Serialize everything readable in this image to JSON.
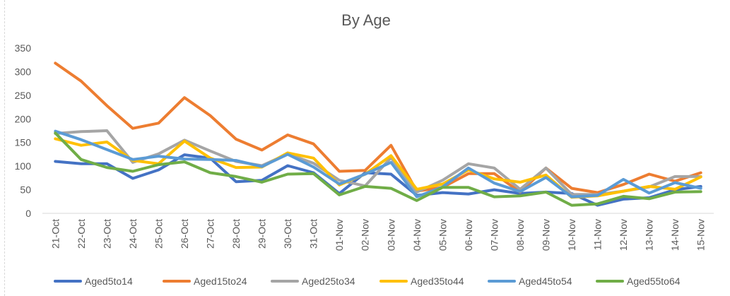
{
  "chart_data": {
    "type": "line",
    "title": "By Age",
    "ylim": [
      0,
      350
    ],
    "yticks": [
      0,
      50,
      100,
      150,
      200,
      250,
      300,
      350
    ],
    "grid": false,
    "legend_position": "bottom",
    "categories": [
      "21-Oct",
      "22-Oct",
      "23-Oct",
      "24-Oct",
      "25-Oct",
      "26-Oct",
      "27-Oct",
      "28-Oct",
      "29-Oct",
      "30-Oct",
      "31-Oct",
      "01-Nov",
      "02-Nov",
      "03-Nov",
      "04-Nov",
      "05-Nov",
      "06-Nov",
      "07-Nov",
      "08-Nov",
      "09-Nov",
      "10-Nov",
      "11-Nov",
      "12-Nov",
      "13-Nov",
      "14-Nov",
      "15-Nov"
    ],
    "series": [
      {
        "name": "Aged5to14",
        "color": "#4472C4",
        "values": [
          110,
          105,
          105,
          74,
          92,
          124,
          117,
          67,
          70,
          101,
          86,
          42,
          86,
          83,
          38,
          44,
          41,
          50,
          42,
          45,
          42,
          17,
          30,
          33,
          50,
          57
        ]
      },
      {
        "name": "Aged15to24",
        "color": "#ED7D31",
        "values": [
          318,
          280,
          228,
          180,
          191,
          245,
          207,
          157,
          134,
          166,
          147,
          89,
          91,
          144,
          47,
          55,
          84,
          84,
          45,
          96,
          53,
          44,
          61,
          83,
          68,
          86
        ]
      },
      {
        "name": "Aged25to34",
        "color": "#A5A5A5",
        "values": [
          169,
          173,
          175,
          108,
          126,
          155,
          132,
          110,
          101,
          126,
          106,
          70,
          58,
          118,
          45,
          70,
          105,
          96,
          51,
          96,
          40,
          40,
          47,
          56,
          78,
          78
        ]
      },
      {
        "name": "Aged35to44",
        "color": "#FFC000",
        "values": [
          158,
          144,
          151,
          112,
          105,
          153,
          117,
          97,
          98,
          128,
          117,
          60,
          83,
          122,
          51,
          62,
          92,
          73,
          66,
          81,
          34,
          37,
          47,
          57,
          51,
          77
        ]
      },
      {
        "name": "Aged45to54",
        "color": "#5B9BD5",
        "values": [
          174,
          156,
          135,
          114,
          121,
          115,
          114,
          112,
          99,
          125,
          98,
          62,
          83,
          108,
          35,
          56,
          96,
          64,
          46,
          76,
          35,
          38,
          72,
          43,
          65,
          53
        ]
      },
      {
        "name": "Aged55to64",
        "color": "#70AD47",
        "values": [
          170,
          114,
          97,
          89,
          103,
          109,
          86,
          78,
          66,
          83,
          84,
          39,
          57,
          53,
          27,
          55,
          55,
          35,
          37,
          45,
          17,
          20,
          36,
          31,
          45,
          46
        ]
      }
    ]
  }
}
